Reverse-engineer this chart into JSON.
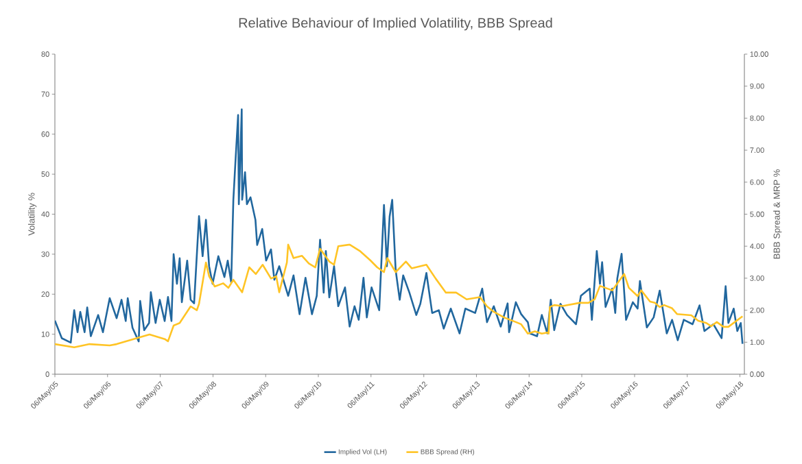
{
  "chart_data": {
    "type": "line",
    "title": "Relative Behaviour of Implied Volatility, BBB Spread",
    "ylabel": "Volatility %",
    "y2label": "BBB Spread & MRP %",
    "xlim": [
      "2005-05-06",
      "2018-06-06"
    ],
    "xticks": [
      {
        "value": "2005-05-06",
        "label": "06/May/05"
      },
      {
        "value": "2006-05-06",
        "label": "06/May/06"
      },
      {
        "value": "2007-05-06",
        "label": "06/May/07"
      },
      {
        "value": "2008-05-06",
        "label": "06/May/08"
      },
      {
        "value": "2009-05-06",
        "label": "06/May/09"
      },
      {
        "value": "2010-05-06",
        "label": "06/May/10"
      },
      {
        "value": "2011-05-06",
        "label": "06/May/11"
      },
      {
        "value": "2012-05-06",
        "label": "06/May/12"
      },
      {
        "value": "2013-05-06",
        "label": "06/May/13"
      },
      {
        "value": "2014-05-06",
        "label": "06/May/14"
      },
      {
        "value": "2015-05-06",
        "label": "06/May/15"
      },
      {
        "value": "2016-05-06",
        "label": "06/May/16"
      },
      {
        "value": "2017-05-06",
        "label": "06/May/17"
      },
      {
        "value": "2018-05-06",
        "label": "06/May/18"
      }
    ],
    "ylim": [
      0,
      80
    ],
    "yticks": [
      0,
      10,
      20,
      30,
      40,
      50,
      60,
      70,
      80
    ],
    "y2lim": [
      0,
      10
    ],
    "y2ticks": [
      {
        "value": 0,
        "label": "0.00"
      },
      {
        "value": 1,
        "label": "1.00"
      },
      {
        "value": 2,
        "label": "2.00"
      },
      {
        "value": 3,
        "label": "3.00"
      },
      {
        "value": 4,
        "label": "4.00"
      },
      {
        "value": 5,
        "label": "5.00"
      },
      {
        "value": 6,
        "label": "6.00"
      },
      {
        "value": 7,
        "label": "7.00"
      },
      {
        "value": 8,
        "label": "8.00"
      },
      {
        "value": 9,
        "label": "9.00"
      },
      {
        "value": 10,
        "label": "10.00"
      }
    ],
    "legend": "bottom",
    "marker": "none",
    "line_style": "solid",
    "series": [
      {
        "name": "Implied Vol (LH)",
        "color": "#21679e",
        "x": [
          "2005-05-06",
          "2005-06-23",
          "2005-08-24",
          "2005-09-17",
          "2005-10-10",
          "2005-10-29",
          "2005-11-28",
          "2005-12-16",
          "2006-01-10",
          "2006-03-02",
          "2006-04-04",
          "2006-05-21",
          "2006-07-08",
          "2006-08-11",
          "2006-09-09",
          "2006-09-23",
          "2006-10-26",
          "2006-12-08",
          "2006-12-18",
          "2007-01-15",
          "2007-02-18",
          "2007-03-02",
          "2007-04-04",
          "2007-05-03",
          "2007-06-06",
          "2007-06-29",
          "2007-07-23",
          "2007-08-07",
          "2007-08-30",
          "2007-09-18",
          "2007-10-03",
          "2007-11-09",
          "2007-12-03",
          "2007-12-27",
          "2008-01-30",
          "2008-02-24",
          "2008-03-18",
          "2008-04-09",
          "2008-05-03",
          "2008-06-12",
          "2008-07-24",
          "2008-08-16",
          "2008-09-09",
          "2008-09-24",
          "2008-10-08",
          "2008-10-27",
          "2008-11-01",
          "2008-11-21",
          "2008-11-24",
          "2008-12-14",
          "2008-12-27",
          "2009-01-21",
          "2009-02-24",
          "2009-03-08",
          "2009-04-12",
          "2009-05-09",
          "2009-06-12",
          "2009-07-05",
          "2009-08-08",
          "2009-10-09",
          "2009-11-15",
          "2009-12-27",
          "2010-02-06",
          "2010-03-23",
          "2010-04-25",
          "2010-05-18",
          "2010-06-12",
          "2010-06-27",
          "2010-07-21",
          "2010-08-23",
          "2010-09-21",
          "2010-11-07",
          "2010-12-09",
          "2011-01-12",
          "2011-02-10",
          "2011-03-15",
          "2011-04-07",
          "2011-05-10",
          "2011-07-02",
          "2011-08-04",
          "2011-08-24",
          "2011-09-12",
          "2011-09-30",
          "2011-10-24",
          "2011-11-21",
          "2011-12-15",
          "2012-01-27",
          "2012-03-15",
          "2012-04-12",
          "2012-05-24",
          "2012-07-03",
          "2012-08-18",
          "2012-09-21",
          "2012-11-09",
          "2013-01-09",
          "2013-02-18",
          "2013-04-27",
          "2013-06-15",
          "2013-07-18",
          "2013-09-03",
          "2013-10-21",
          "2013-12-08",
          "2013-12-18",
          "2014-02-03",
          "2014-03-12",
          "2014-04-27",
          "2014-05-12",
          "2014-06-30",
          "2014-08-02",
          "2014-09-09",
          "2014-10-03",
          "2014-10-27",
          "2014-12-09",
          "2015-01-24",
          "2015-03-27",
          "2015-04-30",
          "2015-06-30",
          "2015-07-15",
          "2015-08-18",
          "2015-09-09",
          "2015-09-24",
          "2015-10-18",
          "2015-12-03",
          "2015-12-24",
          "2016-01-07",
          "2016-02-06",
          "2016-03-08",
          "2016-04-24",
          "2016-05-27",
          "2016-06-12",
          "2016-07-30",
          "2016-09-15",
          "2016-10-27",
          "2016-12-15",
          "2017-01-21",
          "2017-03-01",
          "2017-04-12",
          "2017-06-12",
          "2017-07-30",
          "2017-09-02",
          "2017-11-03",
          "2017-12-30",
          "2018-01-27",
          "2018-02-15",
          "2018-03-24",
          "2018-04-18",
          "2018-05-12",
          "2018-05-24"
        ],
        "values": [
          13.4,
          9,
          7.9,
          16,
          10.5,
          15.6,
          10.5,
          16.7,
          9.5,
          14.8,
          10.5,
          19,
          14,
          18.6,
          13.3,
          19,
          11.6,
          8.2,
          18.3,
          11,
          12.8,
          20.5,
          12.8,
          18.6,
          13.3,
          19.3,
          13.3,
          30,
          22.6,
          29,
          18,
          28.4,
          18.6,
          17.7,
          39.5,
          29.5,
          38.6,
          27,
          22.6,
          29.5,
          24.3,
          28.4,
          23,
          43.6,
          52.8,
          64.8,
          42.5,
          66.2,
          43.6,
          50.5,
          42.5,
          44.2,
          38.6,
          32.3,
          36.3,
          28.4,
          31.2,
          23.6,
          27,
          19.6,
          24.7,
          15,
          24.1,
          15,
          19.6,
          33.6,
          20.4,
          30.8,
          19.2,
          27,
          17,
          21.7,
          11.9,
          17,
          13.6,
          24.1,
          14.2,
          21.7,
          16,
          42.3,
          27,
          39.4,
          43.6,
          26,
          18.6,
          24.7,
          20.4,
          14.8,
          17.6,
          25.3,
          15.3,
          16,
          11.4,
          16.4,
          10.2,
          16.4,
          15.3,
          21.4,
          13,
          17,
          11.9,
          17.7,
          10.5,
          18,
          15,
          13,
          10.2,
          9.5,
          14.8,
          10.2,
          18.6,
          11,
          17.6,
          14.8,
          12.5,
          19.6,
          21.4,
          13.6,
          30.8,
          22.6,
          28,
          16.8,
          21.4,
          15.3,
          23.9,
          30.1,
          13.6,
          18,
          16.4,
          23.3,
          11.7,
          14.2,
          20.9,
          10.2,
          13.6,
          8.5,
          13.6,
          12.5,
          17.2,
          10.8,
          12.5,
          9,
          22,
          12.8,
          16.4,
          10.8,
          12.8,
          7.6
        ]
      },
      {
        "name": "BBB Spread (RH)",
        "color": "#ffc425",
        "axis": "y2",
        "x": [
          "2005-05-06",
          "2005-09-17",
          "2006-01-01",
          "2006-05-21",
          "2006-07-08",
          "2006-11-27",
          "2007-02-21",
          "2007-06-06",
          "2007-06-29",
          "2007-08-07",
          "2007-09-18",
          "2007-12-03",
          "2008-01-15",
          "2008-01-30",
          "2008-03-18",
          "2008-04-09",
          "2008-05-18",
          "2008-07-15",
          "2008-08-21",
          "2008-09-24",
          "2008-11-24",
          "2009-01-12",
          "2009-02-27",
          "2009-04-15",
          "2009-06-12",
          "2009-07-18",
          "2009-08-08",
          "2009-09-30",
          "2009-10-09",
          "2009-11-15",
          "2010-01-12",
          "2010-03-01",
          "2010-04-15",
          "2010-05-18",
          "2010-07-21",
          "2010-08-23",
          "2010-09-21",
          "2010-12-09",
          "2011-02-21",
          "2011-05-01",
          "2011-06-18",
          "2011-08-04",
          "2011-08-27",
          "2011-10-24",
          "2012-01-03",
          "2012-02-12",
          "2012-05-24",
          "2012-07-27",
          "2012-10-06",
          "2012-12-16",
          "2013-02-27",
          "2013-05-30",
          "2013-07-18",
          "2013-09-03",
          "2013-11-15",
          "2014-02-03",
          "2014-03-12",
          "2014-04-27",
          "2014-06-15",
          "2014-08-02",
          "2014-09-09",
          "2014-09-18",
          "2014-09-27",
          "2014-10-27",
          "2014-12-24",
          "2015-04-21",
          "2015-06-21",
          "2015-08-03",
          "2015-09-09",
          "2015-12-03",
          "2016-02-24",
          "2016-03-27",
          "2016-05-27",
          "2016-06-21",
          "2016-08-21",
          "2016-09-24",
          "2016-10-27",
          "2016-11-27",
          "2017-01-21",
          "2017-02-24",
          "2017-06-03",
          "2017-07-21",
          "2017-09-15",
          "2017-10-18",
          "2017-11-27",
          "2018-01-12",
          "2018-02-15",
          "2018-05-24"
        ],
        "values": [
          0.94,
          0.84,
          0.94,
          0.9,
          0.94,
          1.13,
          1.24,
          1.1,
          1.03,
          1.52,
          1.6,
          2.12,
          2.0,
          2.2,
          3.49,
          3.06,
          2.74,
          2.84,
          2.7,
          2.95,
          2.56,
          3.34,
          3.13,
          3.42,
          2.99,
          3.06,
          2.56,
          3.49,
          4.05,
          3.63,
          3.7,
          3.46,
          3.34,
          3.92,
          3.52,
          3.42,
          4.0,
          4.05,
          3.84,
          3.56,
          3.34,
          3.19,
          3.63,
          3.19,
          3.52,
          3.31,
          3.42,
          2.99,
          2.55,
          2.55,
          2.34,
          2.41,
          2.12,
          1.95,
          1.77,
          1.63,
          1.56,
          1.27,
          1.34,
          1.27,
          1.3,
          1.27,
          2.1,
          2.16,
          2.13,
          2.23,
          2.23,
          2.34,
          2.76,
          2.62,
          3.13,
          2.7,
          2.44,
          2.62,
          2.27,
          2.23,
          2.1,
          2.16,
          2.06,
          1.88,
          1.84,
          1.67,
          1.6,
          1.5,
          1.63,
          1.48,
          1.48,
          1.81
        ]
      }
    ]
  }
}
